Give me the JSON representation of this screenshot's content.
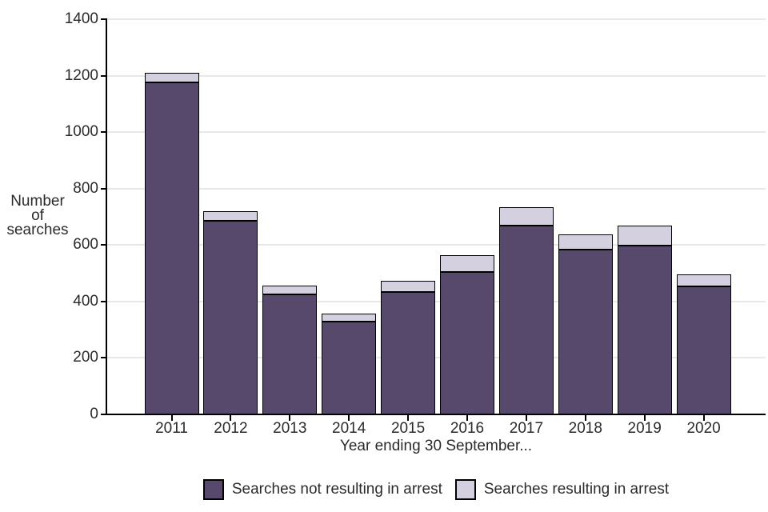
{
  "page": {
    "background": "#ffffff"
  },
  "chart_data": {
    "type": "bar",
    "stacked": true,
    "title": "",
    "xlabel": "Year ending 30 September...",
    "ylabel_lines": [
      "Number",
      "of",
      "searches"
    ],
    "categories": [
      "2011",
      "2012",
      "2013",
      "2014",
      "2015",
      "2016",
      "2017",
      "2018",
      "2019",
      "2020"
    ],
    "series": [
      {
        "name": "Searches not resulting in arrest",
        "color": "#56496B",
        "values": [
          1175,
          685,
          425,
          330,
          433,
          505,
          668,
          585,
          598,
          454
        ]
      },
      {
        "name": "Searches resulting in arrest",
        "color": "#D5D0E0",
        "values": [
          35,
          35,
          30,
          28,
          40,
          60,
          65,
          52,
          72,
          43
        ]
      }
    ],
    "totals": [
      1210,
      720,
      455,
      358,
      473,
      565,
      733,
      637,
      670,
      497
    ],
    "ylim": [
      0,
      1400
    ],
    "y_ticks": [
      0,
      200,
      400,
      600,
      800,
      1000,
      1200,
      1400
    ],
    "grid": true,
    "gridline_color": "#E8E8E8",
    "axis_color": "#000000",
    "text_color": "#2B2B2B",
    "bar_border_color": "#000000",
    "legend_position": "bottom"
  }
}
